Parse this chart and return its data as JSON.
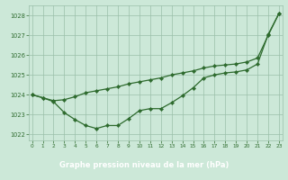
{
  "line1_x": [
    0,
    1,
    2,
    3,
    4,
    5,
    6,
    7,
    8,
    9,
    10,
    11,
    12,
    13,
    14,
    15,
    16,
    17,
    18,
    19,
    20,
    21,
    22,
    23
  ],
  "line1_y": [
    1024.0,
    1023.85,
    1023.7,
    1023.75,
    1023.9,
    1024.1,
    1024.2,
    1024.3,
    1024.4,
    1024.55,
    1024.65,
    1024.75,
    1024.85,
    1025.0,
    1025.1,
    1025.2,
    1025.35,
    1025.45,
    1025.5,
    1025.55,
    1025.65,
    1025.85,
    1027.0,
    1028.1
  ],
  "line2_x": [
    0,
    1,
    2,
    3,
    4,
    5,
    6,
    7,
    8,
    9,
    10,
    11,
    12,
    13,
    14,
    15,
    16,
    17,
    18,
    19,
    20,
    21,
    22,
    23
  ],
  "line2_y": [
    1024.0,
    1023.85,
    1023.65,
    1023.1,
    1022.75,
    1022.45,
    1022.3,
    1022.45,
    1022.45,
    1022.8,
    1023.2,
    1023.3,
    1023.3,
    1023.6,
    1023.95,
    1024.35,
    1024.85,
    1025.0,
    1025.1,
    1025.15,
    1025.25,
    1025.55,
    1027.05,
    1028.1
  ],
  "line_color": "#2d6a2d",
  "bg_color": "#cce8d8",
  "grid_color": "#9abfaa",
  "label_bg_color": "#4a9a6a",
  "xlabel": "Graphe pression niveau de la mer (hPa)",
  "xlabel_color": "#ffffff",
  "xtick_color": "#2d6a2d",
  "ytick_color": "#2d6a2d",
  "xticks": [
    0,
    1,
    2,
    3,
    4,
    5,
    6,
    7,
    8,
    9,
    10,
    11,
    12,
    13,
    14,
    15,
    16,
    17,
    18,
    19,
    20,
    21,
    22,
    23
  ],
  "yticks": [
    1022,
    1023,
    1024,
    1025,
    1026,
    1027,
    1028
  ],
  "ylim": [
    1021.7,
    1028.5
  ],
  "xlim": [
    -0.3,
    23.3
  ]
}
